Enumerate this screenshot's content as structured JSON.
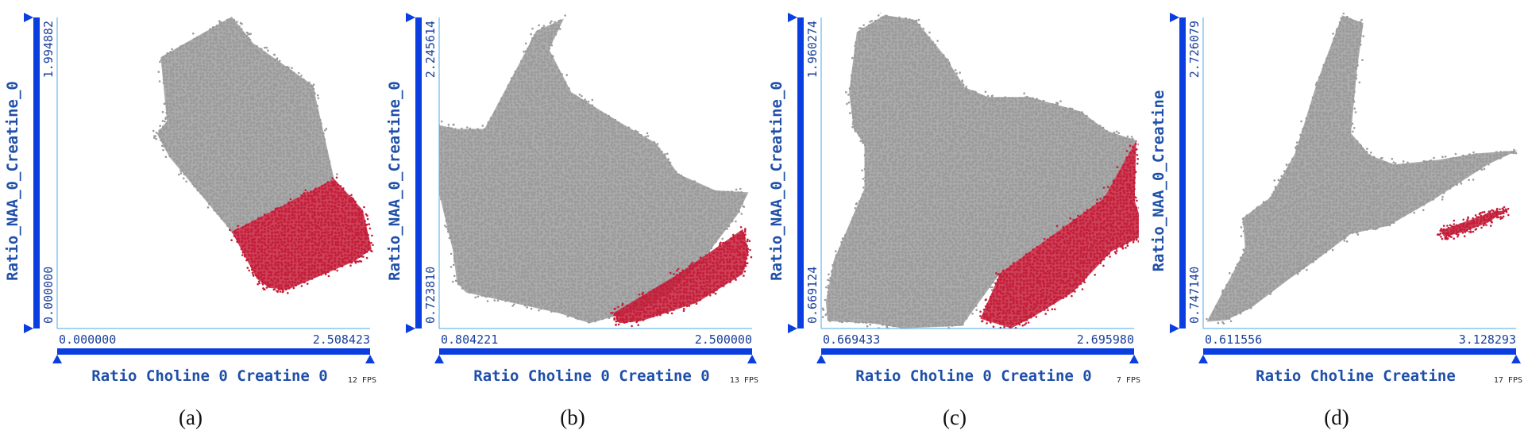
{
  "colors": {
    "background_points": "#9b9b9b",
    "selected_points": "#c41e3a",
    "axis_bar": "#0a3ee0",
    "axis_text": "#1f4fa8",
    "frame": "#4aa8e8"
  },
  "chart_data": [
    {
      "type": "scatter",
      "caption": "(a)",
      "xlabel": "Ratio Choline 0 Creatine 0",
      "ylabel": "Ratio_NAA_0_Creatine_0",
      "xlim": [
        0.0,
        2.508423
      ],
      "ylim": [
        0.0,
        1.994882
      ],
      "x_min_label": "0.000000",
      "x_max_label": "2.508423",
      "y_min_label": "0.000000",
      "y_max_label": "1.994882",
      "fps": "12 FPS",
      "series": [
        {
          "role": "unselected",
          "color": "#9b9b9b",
          "outline": [
            [
              0.83,
              1.74
            ],
            [
              1.4,
              2.0
            ],
            [
              1.57,
              1.83
            ],
            [
              2.05,
              1.56
            ],
            [
              2.22,
              0.96
            ],
            [
              1.4,
              0.62
            ],
            [
              0.9,
              1.1
            ],
            [
              0.8,
              1.25
            ],
            [
              0.88,
              1.33
            ]
          ]
        },
        {
          "role": "selected",
          "color": "#c41e3a",
          "outline": [
            [
              1.4,
              0.62
            ],
            [
              2.22,
              0.96
            ],
            [
              2.45,
              0.76
            ],
            [
              2.52,
              0.51
            ],
            [
              2.38,
              0.43
            ],
            [
              1.85,
              0.25
            ],
            [
              1.7,
              0.26
            ],
            [
              1.6,
              0.32
            ]
          ]
        }
      ]
    },
    {
      "type": "scatter",
      "caption": "(b)",
      "xlabel": "Ratio Choline 0 Creatine 0",
      "ylabel": "Ratio_NAA_0_Creatine_0",
      "xlim": [
        0.804221,
        2.5
      ],
      "ylim": [
        0.72381,
        2.245614
      ],
      "x_min_label": "0.804221",
      "x_max_label": "2.500000",
      "y_min_label": "0.723810",
      "y_max_label": "2.245614",
      "fps": "13 FPS",
      "series": [
        {
          "role": "unselected",
          "color": "#9b9b9b",
          "outline": [
            [
              0.8,
              1.72
            ],
            [
              0.9,
              1.7
            ],
            [
              1.05,
              1.7
            ],
            [
              1.25,
              2.04
            ],
            [
              1.33,
              2.18
            ],
            [
              1.48,
              2.24
            ],
            [
              1.4,
              2.09
            ],
            [
              1.52,
              1.88
            ],
            [
              1.75,
              1.75
            ],
            [
              1.98,
              1.63
            ],
            [
              2.1,
              1.48
            ],
            [
              2.3,
              1.4
            ],
            [
              2.48,
              1.39
            ],
            [
              2.42,
              1.28
            ],
            [
              2.25,
              1.08
            ],
            [
              2.05,
              0.9
            ],
            [
              1.9,
              0.82
            ],
            [
              1.62,
              0.75
            ],
            [
              1.45,
              0.8
            ],
            [
              1.2,
              0.85
            ],
            [
              1.05,
              0.88
            ],
            [
              0.95,
              0.9
            ],
            [
              0.9,
              0.95
            ],
            [
              0.88,
              1.1
            ],
            [
              0.8,
              1.4
            ]
          ]
        },
        {
          "role": "selected",
          "color": "#c41e3a",
          "outline": [
            [
              1.75,
              0.8
            ],
            [
              2.1,
              0.99
            ],
            [
              2.45,
              1.21
            ],
            [
              2.48,
              1.1
            ],
            [
              2.45,
              0.99
            ],
            [
              2.2,
              0.85
            ],
            [
              1.9,
              0.76
            ],
            [
              1.78,
              0.75
            ]
          ]
        }
      ]
    },
    {
      "type": "scatter",
      "caption": "(c)",
      "xlabel": "Ratio Choline 0 Creatine 0",
      "ylabel": "Ratio_NAA_0_Creatine_0",
      "xlim": [
        0.669433,
        2.69598
      ],
      "ylim": [
        0.669124,
        1.960274
      ],
      "x_min_label": "0.669433",
      "x_max_label": "2.695980",
      "y_min_label": "0.669124",
      "y_max_label": "1.960274",
      "fps": "7 FPS",
      "series": [
        {
          "role": "unselected",
          "color": "#9b9b9b",
          "outline": [
            [
              0.9,
              1.9
            ],
            [
              1.08,
              1.97
            ],
            [
              1.28,
              1.95
            ],
            [
              1.47,
              1.8
            ],
            [
              1.6,
              1.67
            ],
            [
              1.75,
              1.63
            ],
            [
              2.02,
              1.63
            ],
            [
              2.35,
              1.57
            ],
            [
              2.52,
              1.49
            ],
            [
              2.71,
              1.45
            ],
            [
              2.5,
              1.21
            ],
            [
              1.83,
              0.9
            ],
            [
              1.58,
              0.68
            ],
            [
              1.2,
              0.67
            ],
            [
              1.0,
              0.69
            ],
            [
              0.71,
              0.7
            ],
            [
              0.7,
              0.78
            ],
            [
              0.75,
              0.95
            ],
            [
              0.95,
              1.25
            ],
            [
              0.95,
              1.43
            ],
            [
              0.88,
              1.5
            ],
            [
              0.85,
              1.65
            ]
          ]
        },
        {
          "role": "selected",
          "color": "#c41e3a",
          "outline": [
            [
              2.71,
              1.45
            ],
            [
              2.7,
              1.2
            ],
            [
              2.77,
              1.06
            ],
            [
              2.55,
              0.99
            ],
            [
              2.3,
              0.82
            ],
            [
              2.05,
              0.72
            ],
            [
              1.9,
              0.67
            ],
            [
              1.7,
              0.71
            ],
            [
              1.83,
              0.9
            ],
            [
              2.5,
              1.21
            ]
          ]
        }
      ]
    },
    {
      "type": "scatter",
      "caption": "(d)",
      "xlabel": "Ratio Choline Creatine",
      "ylabel": "Ratio_NAA_0_Creatine",
      "xlim": [
        0.611556,
        3.128293
      ],
      "ylim": [
        0.74714,
        2.726079
      ],
      "x_min_label": "0.611556",
      "x_max_label": "3.128293",
      "y_min_label": "0.747140",
      "y_max_label": "2.726079",
      "fps": "17 FPS",
      "series": [
        {
          "role": "unselected",
          "color": "#9b9b9b",
          "outline": [
            [
              0.64,
              0.79
            ],
            [
              0.95,
              1.25
            ],
            [
              0.93,
              1.45
            ],
            [
              1.15,
              1.58
            ],
            [
              1.35,
              1.86
            ],
            [
              1.53,
              2.32
            ],
            [
              1.73,
              2.74
            ],
            [
              1.9,
              2.69
            ],
            [
              1.85,
              2.4
            ],
            [
              1.8,
              1.99
            ],
            [
              1.95,
              1.85
            ],
            [
              2.15,
              1.79
            ],
            [
              2.5,
              1.82
            ],
            [
              2.8,
              1.86
            ],
            [
              3.14,
              1.88
            ],
            [
              2.9,
              1.79
            ],
            [
              2.45,
              1.56
            ],
            [
              2.1,
              1.4
            ],
            [
              1.8,
              1.35
            ],
            [
              1.55,
              1.2
            ],
            [
              1.3,
              1.06
            ],
            [
              1.0,
              0.88
            ],
            [
              0.8,
              0.8
            ]
          ]
        },
        {
          "role": "selected",
          "color": "#c41e3a",
          "outline": [
            [
              2.52,
              1.37
            ],
            [
              2.8,
              1.45
            ],
            [
              2.95,
              1.49
            ],
            [
              3.05,
              1.5
            ],
            [
              2.9,
              1.42
            ],
            [
              2.7,
              1.36
            ],
            [
              2.55,
              1.33
            ]
          ]
        }
      ]
    }
  ]
}
